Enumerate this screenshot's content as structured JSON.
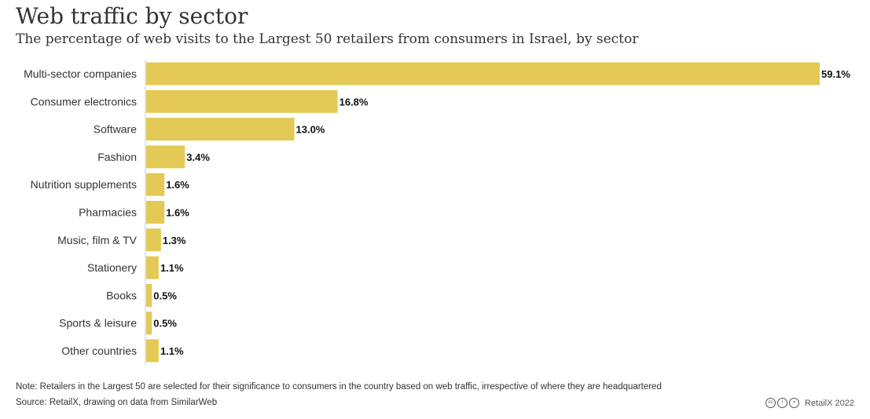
{
  "header": {
    "title": "Web traffic by sector",
    "subtitle": "The percentage of web visits to the Largest 50 retailers from consumers in Israel, by sector"
  },
  "footer": {
    "note": "Note: Retailers in the Largest 50 are selected for their significance to consumers in the country based on web traffic, irrespective of where they are headquartered",
    "source": "Source: RetailX, drawing on data from SimilarWeb",
    "brand": "RetailX 2022",
    "icons": [
      "cc-icon",
      "by-icon",
      "nd-icon"
    ]
  },
  "colors": {
    "bar": "#e3c955",
    "axis": "#cccccc"
  },
  "chart_data": {
    "type": "bar",
    "orientation": "horizontal",
    "categories": [
      "Multi-sector companies",
      "Consumer electronics",
      "Software",
      "Fashion",
      "Nutrition supplements",
      "Pharmacies",
      "Music, film & TV",
      "Stationery",
      "Books",
      "Sports & leisure",
      "Other countries"
    ],
    "values": [
      59.1,
      16.8,
      13.0,
      3.4,
      1.6,
      1.6,
      1.3,
      1.1,
      0.5,
      0.5,
      1.1
    ],
    "value_labels": [
      "59.1%",
      "16.8%",
      "13.0%",
      "3.4%",
      "1.6%",
      "1.6%",
      "1.3%",
      "1.1%",
      "0.5%",
      "0.5%",
      "1.1%"
    ],
    "xlim": [
      0,
      59.1
    ],
    "grid": false,
    "legend": "none"
  }
}
